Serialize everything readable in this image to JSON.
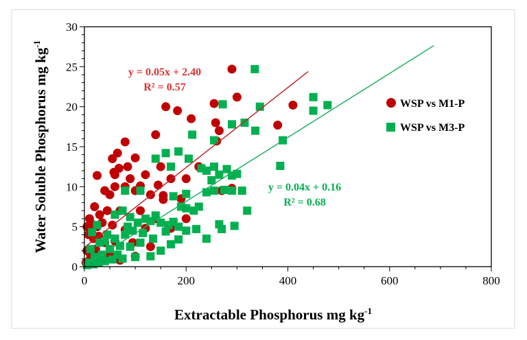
{
  "chart_data": {
    "type": "scatter",
    "xlabel": "Extractable Phosphorus  mg kg",
    "xlabel_sup": "-1",
    "ylabel": "Water Soluble Phosphorus mg kg",
    "ylabel_sup": "-1",
    "xlim": [
      0,
      800
    ],
    "ylim": [
      0,
      30
    ],
    "xticks": [
      "0",
      "200",
      "400",
      "600",
      "800"
    ],
    "yticks": [
      "0",
      "5",
      "10",
      "15",
      "20",
      "25",
      "30"
    ],
    "grid": false,
    "legend_position": "right",
    "colors": {
      "m1": "#c00000",
      "m3": "#00b050"
    },
    "series": [
      {
        "name": "WSP vs M1-P",
        "marker": "circle",
        "color": "#c00000",
        "trend": {
          "slope": 0.05,
          "intercept": 2.4,
          "x_end": 440,
          "equation": "y = 0.05x + 2.40",
          "r2": "R² = 0.57"
        },
        "points": [
          [
            290,
            24.7
          ],
          [
            410,
            20.2
          ],
          [
            300,
            21.2
          ],
          [
            255,
            20.4
          ],
          [
            160,
            20
          ],
          [
            183,
            19.5
          ],
          [
            380,
            17.7
          ],
          [
            210,
            18.5
          ],
          [
            258,
            18
          ],
          [
            265,
            17
          ],
          [
            260,
            15.7
          ],
          [
            140,
            16.5
          ],
          [
            80,
            15.6
          ],
          [
            65,
            14.2
          ],
          [
            55,
            13.5
          ],
          [
            100,
            13.6
          ],
          [
            68,
            12.3
          ],
          [
            58,
            11.8
          ],
          [
            90,
            11
          ],
          [
            120,
            11.5
          ],
          [
            150,
            12.5
          ],
          [
            170,
            11
          ],
          [
            200,
            11
          ],
          [
            225,
            12.5
          ],
          [
            40,
            9.5
          ],
          [
            50,
            9
          ],
          [
            60,
            10
          ],
          [
            80,
            10
          ],
          [
            100,
            9.5
          ],
          [
            130,
            9
          ],
          [
            155,
            8.4
          ],
          [
            270,
            9.5
          ],
          [
            290,
            9.8
          ],
          [
            190,
            8.5
          ],
          [
            20,
            7.5
          ],
          [
            30,
            6.5
          ],
          [
            45,
            7
          ],
          [
            70,
            7
          ],
          [
            110,
            7
          ],
          [
            140,
            6
          ],
          [
            200,
            6
          ],
          [
            10,
            6
          ],
          [
            5,
            5
          ],
          [
            15,
            5.3
          ],
          [
            25,
            5
          ],
          [
            35,
            5.5
          ],
          [
            55,
            5.2
          ],
          [
            80,
            4.6
          ],
          [
            120,
            4.8
          ],
          [
            170,
            4.8
          ],
          [
            8,
            4
          ],
          [
            18,
            3.5
          ],
          [
            28,
            3.8
          ],
          [
            40,
            3
          ],
          [
            60,
            3.2
          ],
          [
            95,
            3
          ],
          [
            130,
            2.5
          ],
          [
            5,
            2
          ],
          [
            12,
            1.5
          ],
          [
            22,
            2.2
          ],
          [
            50,
            1.5
          ],
          [
            100,
            1.3
          ],
          [
            3,
            0.5
          ],
          [
            10,
            0.8
          ],
          [
            30,
            0.6
          ],
          [
            70,
            0.8
          ],
          [
            25,
            11.4
          ],
          [
            60,
            11.5
          ],
          [
            110,
            10.1
          ],
          [
            85,
            12.5
          ],
          [
            155,
            8.9
          ],
          [
            145,
            10.2
          ]
        ]
      },
      {
        "name": "WSP vs M3-P",
        "marker": "square",
        "color": "#00b050",
        "trend": {
          "slope": 0.04,
          "intercept": 0.16,
          "x_end": 687,
          "equation": "y = 0.04x + 0.16",
          "r2": "R² = 0.68"
        },
        "points": [
          [
            335,
            24.7
          ],
          [
            450,
            21.2
          ],
          [
            345,
            20
          ],
          [
            272,
            20.3
          ],
          [
            478,
            20.2
          ],
          [
            450,
            19.5
          ],
          [
            290,
            17.8
          ],
          [
            315,
            18
          ],
          [
            336,
            17
          ],
          [
            390,
            15.8
          ],
          [
            255,
            15.8
          ],
          [
            212,
            16.5
          ],
          [
            160,
            14.2
          ],
          [
            185,
            14.4
          ],
          [
            170,
            12.5
          ],
          [
            205,
            13.5
          ],
          [
            230,
            12.3
          ],
          [
            240,
            12
          ],
          [
            255,
            12.5
          ],
          [
            265,
            11.5
          ],
          [
            280,
            12.2
          ],
          [
            290,
            11.4
          ],
          [
            300,
            11.6
          ],
          [
            385,
            12.6
          ],
          [
            250,
            10.8
          ],
          [
            310,
            9.5
          ],
          [
            275,
            9.6
          ],
          [
            290,
            9.5
          ],
          [
            80,
            9.5
          ],
          [
            110,
            9.5
          ],
          [
            200,
            9.1
          ],
          [
            240,
            9.3
          ],
          [
            255,
            9.5
          ],
          [
            320,
            7
          ],
          [
            265,
            5.3
          ],
          [
            295,
            5.1
          ],
          [
            270,
            4.7
          ],
          [
            240,
            3.5
          ],
          [
            190,
            7.5
          ],
          [
            175,
            8.8
          ],
          [
            200,
            7.3
          ],
          [
            215,
            7
          ],
          [
            225,
            7.5
          ],
          [
            60,
            6.5
          ],
          [
            75,
            7
          ],
          [
            90,
            6.2
          ],
          [
            120,
            6
          ],
          [
            140,
            6.4
          ],
          [
            150,
            5.5
          ],
          [
            165,
            5.2
          ],
          [
            185,
            5
          ],
          [
            200,
            4.5
          ],
          [
            220,
            4.7
          ],
          [
            130,
            5.7
          ],
          [
            105,
            5.5
          ],
          [
            95,
            4.5
          ],
          [
            80,
            4
          ],
          [
            60,
            3.5
          ],
          [
            40,
            3.2
          ],
          [
            30,
            3
          ],
          [
            25,
            5.2
          ],
          [
            15,
            4.3
          ],
          [
            50,
            2.2
          ],
          [
            70,
            2.6
          ],
          [
            90,
            2.5
          ],
          [
            110,
            3
          ],
          [
            135,
            3.5
          ],
          [
            150,
            2
          ],
          [
            170,
            2.8
          ],
          [
            185,
            3.4
          ],
          [
            130,
            1.3
          ],
          [
            100,
            1.2
          ],
          [
            65,
            1.5
          ],
          [
            35,
            1.5
          ],
          [
            20,
            1.2
          ],
          [
            10,
            0.5
          ],
          [
            5,
            0.2
          ],
          [
            18,
            0.3
          ],
          [
            28,
            0.5
          ],
          [
            40,
            0.7
          ],
          [
            55,
            0.9
          ],
          [
            75,
            1
          ],
          [
            12,
            2.2
          ],
          [
            45,
            4
          ],
          [
            85,
            5
          ],
          [
            115,
            4.2
          ],
          [
            160,
            4.4
          ],
          [
            175,
            5.6
          ],
          [
            140,
            13.5
          ]
        ]
      }
    ]
  }
}
